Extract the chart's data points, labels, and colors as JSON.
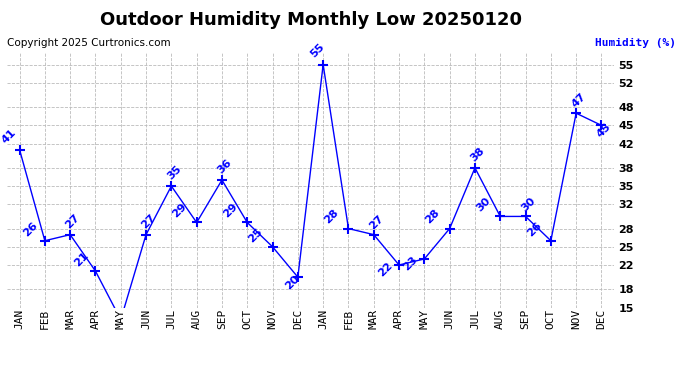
{
  "title": "Outdoor Humidity Monthly Low 20250120",
  "copyright": "Copyright 2025 Curtronics.com",
  "ylabel_right": "Humidity (%)",
  "months": [
    "JAN",
    "FEB",
    "MAR",
    "APR",
    "MAY",
    "JUN",
    "JUL",
    "AUG",
    "SEP",
    "OCT",
    "NOV",
    "DEC",
    "JAN",
    "FEB",
    "MAR",
    "APR",
    "MAY",
    "JUN",
    "JUL",
    "AUG",
    "SEP",
    "OCT",
    "NOV",
    "DEC"
  ],
  "values": [
    41,
    26,
    27,
    21,
    13,
    27,
    35,
    29,
    36,
    29,
    25,
    20,
    55,
    28,
    27,
    22,
    23,
    28,
    38,
    30,
    30,
    26,
    47,
    45
  ],
  "ylim_min": 15,
  "ylim_max": 57,
  "yticks": [
    15,
    18,
    22,
    25,
    28,
    32,
    35,
    38,
    42,
    45,
    48,
    52,
    55
  ],
  "line_color": "blue",
  "marker": "+",
  "marker_size": 7,
  "marker_color": "blue",
  "label_color": "blue",
  "title_color": "black",
  "copyright_color": "black",
  "ylabel_right_color": "blue",
  "background_color": "#ffffff",
  "grid_color": "#bbbbbb",
  "title_fontsize": 13,
  "tick_fontsize": 8,
  "label_fontsize": 8,
  "annot_fontsize": 8
}
